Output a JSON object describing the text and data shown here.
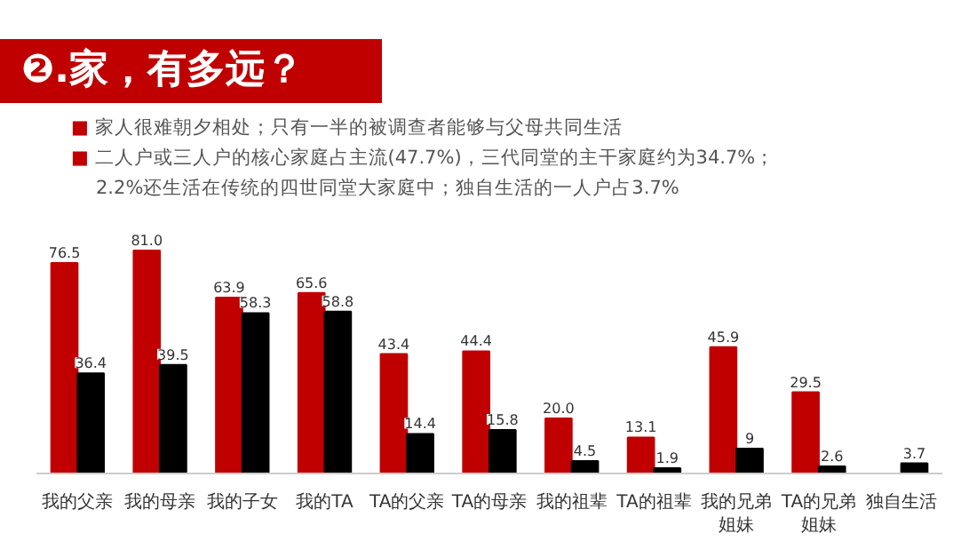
{
  "chart_data": {
    "type": "bar",
    "title": "❷.家，有多远？",
    "annotations": [
      "■ 家人很难朝夕相处；只有一半的被调查者能够与父母共同生活",
      "■ 二人户或三人户的核心家庭占主流(47.7%)，三代同堂的主干家庭约为34.7%；2.2%还生活在传统的四世同堂大家庭中；独自生活的一人户占3.7%"
    ],
    "categories": [
      "我的父亲",
      "我的母亲",
      "我的子女",
      "我的TA",
      "TA的父亲",
      "TA的母亲",
      "我的祖辈",
      "TA的祖辈",
      "我的兄弟姐妹",
      "TA的兄弟姐妹",
      "独自生活"
    ],
    "series": [
      {
        "color": "#c00000",
        "values": [
          76.5,
          81.0,
          63.9,
          65.6,
          43.4,
          44.4,
          20.0,
          13.1,
          45.9,
          29.5,
          null
        ],
        "value_labels": [
          "76.5",
          "81.0",
          "63.9",
          "65.6",
          "43.4",
          "44.4",
          "20.0",
          "13.1",
          "45.9",
          "29.5",
          null
        ]
      },
      {
        "color": "#000000",
        "values": [
          36.4,
          39.5,
          58.3,
          58.8,
          14.4,
          15.8,
          4.5,
          1.9,
          9,
          2.6,
          3.7
        ],
        "value_labels": [
          "36.4",
          "39.5",
          "58.3",
          "58.8",
          "14.4",
          "15.8",
          "4.5",
          "1.9",
          "9",
          "2.6",
          "3.7"
        ]
      }
    ],
    "grid": false,
    "tick_labels": "x"
  }
}
